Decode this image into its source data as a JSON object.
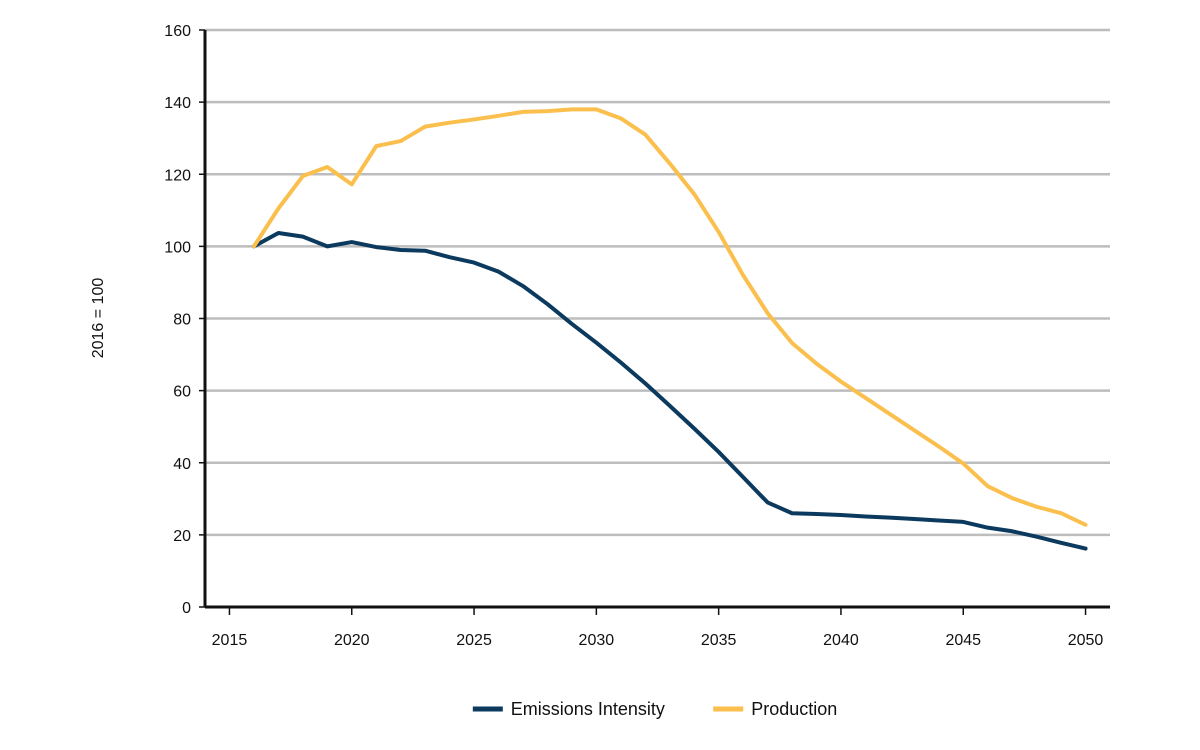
{
  "chart_data": {
    "type": "line",
    "title": "",
    "xlabel": "",
    "ylabel": "2016 = 100",
    "xlim": [
      2014,
      2051
    ],
    "ylim": [
      0,
      160
    ],
    "xticks": [
      2015,
      2020,
      2025,
      2030,
      2035,
      2040,
      2045,
      2050
    ],
    "yticks": [
      0,
      20,
      40,
      60,
      80,
      100,
      120,
      140,
      160
    ],
    "grid": "horizontal",
    "legend_position": "bottom-center",
    "x": [
      2016,
      2017,
      2018,
      2019,
      2020,
      2021,
      2022,
      2023,
      2024,
      2025,
      2026,
      2027,
      2028,
      2029,
      2030,
      2031,
      2032,
      2033,
      2034,
      2035,
      2036,
      2037,
      2038,
      2039,
      2040,
      2041,
      2042,
      2043,
      2044,
      2045,
      2046,
      2047,
      2048,
      2049,
      2050
    ],
    "series": [
      {
        "name": "Emissions Intensity",
        "color": "#0b3a5e",
        "values": [
          100,
          103.7,
          102.7,
          100,
          101.2,
          99.8,
          99,
          98.8,
          97,
          95.5,
          93,
          89,
          84,
          78.5,
          73.3,
          67.8,
          62,
          55.8,
          49.5,
          43,
          36,
          29,
          26,
          25.8,
          25.5,
          25.1,
          24.8,
          24.4,
          24,
          23.6,
          22,
          21,
          19.5,
          17.8,
          16.2
        ]
      },
      {
        "name": "Production",
        "color": "#fbbf4e",
        "values": [
          100,
          110.5,
          119.5,
          122,
          117.2,
          127.8,
          129.2,
          133.2,
          134.3,
          135.2,
          136.2,
          137.3,
          137.5,
          138,
          138,
          135.5,
          131,
          123,
          114.5,
          104,
          92,
          81.5,
          73.2,
          67.5,
          62.5,
          58,
          53.5,
          49,
          44.5,
          39.8,
          33.5,
          30.2,
          27.8,
          26,
          22.8
        ]
      }
    ]
  }
}
